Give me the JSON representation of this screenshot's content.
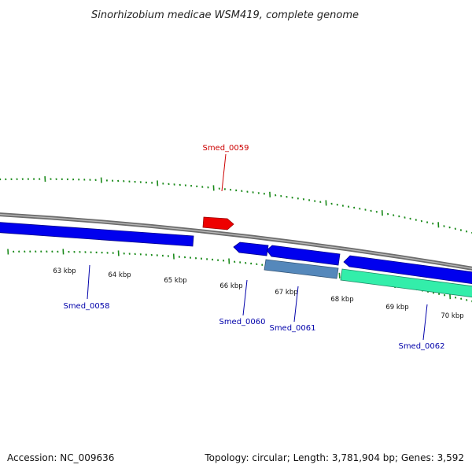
{
  "title": "Sinorhizobium medicae WSM419, complete genome",
  "footer": {
    "accession": "Accession: NC_009636",
    "summary": "Topology: circular; Length: 3,781,904 bp; Genes: 3,592"
  },
  "colors": {
    "backbone": "#8a8a8a",
    "tick": "#1a8a1a",
    "gene_forward": "#ee0000",
    "gene_reverse": "#0000ee",
    "gene_reverse_light": "#5588bb",
    "gene_cyan": "#33eeaa",
    "label_forward": "#cc0000",
    "label_reverse": "#0000aa"
  },
  "scale": {
    "tick_labels": [
      "63 kbp",
      "64 kbp",
      "65 kbp",
      "66 kbp",
      "67 kbp",
      "68 kbp",
      "69 kbp",
      "70 kbp"
    ]
  },
  "genes": [
    {
      "name": "Smed_0058",
      "strand": "reverse",
      "style": "gene_reverse"
    },
    {
      "name": "Smed_0059",
      "strand": "forward",
      "style": "gene_forward"
    },
    {
      "name": "Smed_0060",
      "strand": "reverse",
      "style": "gene_reverse"
    },
    {
      "name": "Smed_0061",
      "strand": "reverse",
      "style": "gene_reverse"
    },
    {
      "name": "Smed_0061",
      "strand": "reverse",
      "style": "gene_reverse_light"
    },
    {
      "name": "Smed_0062",
      "strand": "reverse",
      "style": "gene_reverse"
    },
    {
      "name": "Smed_0062",
      "strand": "reverse",
      "style": "gene_cyan"
    }
  ],
  "gene_labels": [
    {
      "name": "Smed_0058",
      "strand": "reverse"
    },
    {
      "name": "Smed_0059",
      "strand": "forward"
    },
    {
      "name": "Smed_0060",
      "strand": "reverse"
    },
    {
      "name": "Smed_0061",
      "strand": "reverse"
    },
    {
      "name": "Smed_0062",
      "strand": "reverse"
    }
  ]
}
